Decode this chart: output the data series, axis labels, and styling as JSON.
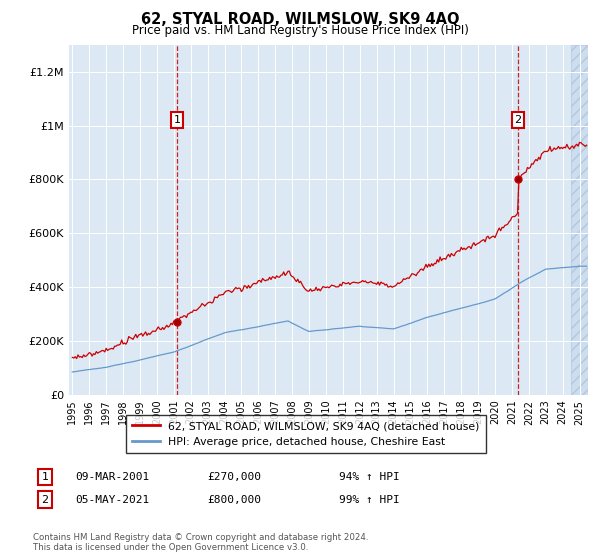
{
  "title": "62, STYAL ROAD, WILMSLOW, SK9 4AQ",
  "subtitle": "Price paid vs. HM Land Registry's House Price Index (HPI)",
  "legend_label_red": "62, STYAL ROAD, WILMSLOW, SK9 4AQ (detached house)",
  "legend_label_blue": "HPI: Average price, detached house, Cheshire East",
  "annotation1_label": "1",
  "annotation1_date": "09-MAR-2001",
  "annotation1_price": "£270,000",
  "annotation1_hpi": "94% ↑ HPI",
  "annotation1_year": 2001.18,
  "annotation1_value": 270000,
  "annotation2_label": "2",
  "annotation2_date": "05-MAY-2021",
  "annotation2_price": "£800,000",
  "annotation2_hpi": "99% ↑ HPI",
  "annotation2_year": 2021.35,
  "annotation2_value": 800000,
  "footer1": "Contains HM Land Registry data © Crown copyright and database right 2024.",
  "footer2": "This data is licensed under the Open Government Licence v3.0.",
  "bg_color": "#dce9f5",
  "red_color": "#cc0000",
  "blue_color": "#6699cc",
  "ylim_min": 0,
  "ylim_max": 1300000,
  "yticks": [
    0,
    200000,
    400000,
    600000,
    800000,
    1000000,
    1200000
  ],
  "ytick_labels": [
    "£0",
    "£200K",
    "£400K",
    "£600K",
    "£800K",
    "£1M",
    "£1.2M"
  ],
  "xmin": 1994.8,
  "xmax": 2025.5
}
